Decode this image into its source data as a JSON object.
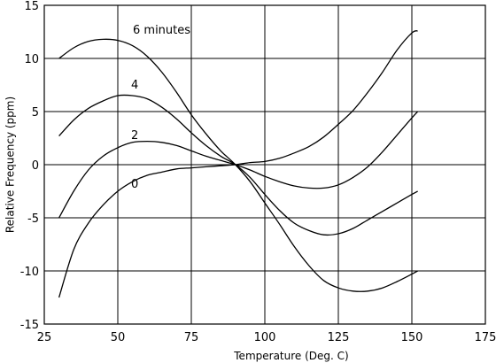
{
  "chart_data": {
    "type": "line",
    "title": "",
    "xlabel": "Temperature (Deg. C)",
    "ylabel": "Relative Frequency (ppm)",
    "xlim": [
      25,
      175
    ],
    "ylim": [
      -15,
      15
    ],
    "x_ticks": [
      "25",
      "50",
      "75",
      "100",
      "125",
      "150",
      "175"
    ],
    "y_ticks": [
      "15",
      "10",
      "5",
      "0",
      "-5",
      "-10",
      "-15"
    ],
    "grid": true,
    "legend": "none",
    "series": [
      {
        "name": "6 minutes",
        "x": [
          30,
          35,
          40,
          45,
          50,
          55,
          60,
          65,
          70,
          75,
          80,
          85,
          90,
          95,
          100,
          105,
          110,
          115,
          120,
          125,
          130,
          135,
          140,
          145,
          150,
          152
        ],
        "y": [
          10.0,
          11.0,
          11.6,
          11.8,
          11.7,
          11.2,
          10.2,
          8.7,
          6.8,
          4.7,
          2.9,
          1.3,
          0.0,
          -1.6,
          -3.6,
          -5.6,
          -7.7,
          -9.5,
          -10.9,
          -11.6,
          -11.9,
          -11.9,
          -11.6,
          -11.0,
          -10.3,
          -10.0
        ],
        "label_text": "6 minutes"
      },
      {
        "name": "4",
        "x": [
          30,
          35,
          40,
          45,
          50,
          55,
          60,
          65,
          70,
          75,
          80,
          85,
          90,
          95,
          100,
          105,
          110,
          115,
          120,
          125,
          130,
          135,
          140,
          145,
          150,
          152
        ],
        "y": [
          2.7,
          4.2,
          5.3,
          6.0,
          6.5,
          6.5,
          6.2,
          5.4,
          4.3,
          3.0,
          1.8,
          0.8,
          0.0,
          -1.2,
          -2.8,
          -4.3,
          -5.5,
          -6.2,
          -6.6,
          -6.5,
          -6.0,
          -5.2,
          -4.4,
          -3.6,
          -2.8,
          -2.5
        ],
        "label_text": "4"
      },
      {
        "name": "2",
        "x": [
          30,
          35,
          40,
          45,
          50,
          55,
          60,
          65,
          70,
          75,
          80,
          85,
          90,
          95,
          100,
          105,
          110,
          115,
          120,
          125,
          130,
          135,
          140,
          145,
          150,
          152
        ],
        "y": [
          -5.0,
          -2.5,
          -0.5,
          0.8,
          1.6,
          2.1,
          2.2,
          2.1,
          1.8,
          1.3,
          0.8,
          0.4,
          0.0,
          -0.5,
          -1.1,
          -1.6,
          -2.0,
          -2.2,
          -2.2,
          -1.9,
          -1.2,
          -0.2,
          1.2,
          2.8,
          4.4,
          5.0
        ],
        "label_text": "2"
      },
      {
        "name": "0",
        "x": [
          30,
          35,
          40,
          45,
          50,
          55,
          60,
          65,
          70,
          75,
          80,
          85,
          90,
          95,
          100,
          105,
          110,
          115,
          120,
          125,
          130,
          135,
          140,
          145,
          150,
          152
        ],
        "y": [
          -12.5,
          -8.0,
          -5.5,
          -3.8,
          -2.5,
          -1.6,
          -1.0,
          -0.7,
          -0.4,
          -0.3,
          -0.2,
          -0.1,
          0.0,
          0.2,
          0.3,
          0.6,
          1.1,
          1.7,
          2.6,
          3.8,
          5.1,
          6.8,
          8.7,
          10.8,
          12.4,
          12.6
        ],
        "label_text": "0"
      }
    ]
  }
}
